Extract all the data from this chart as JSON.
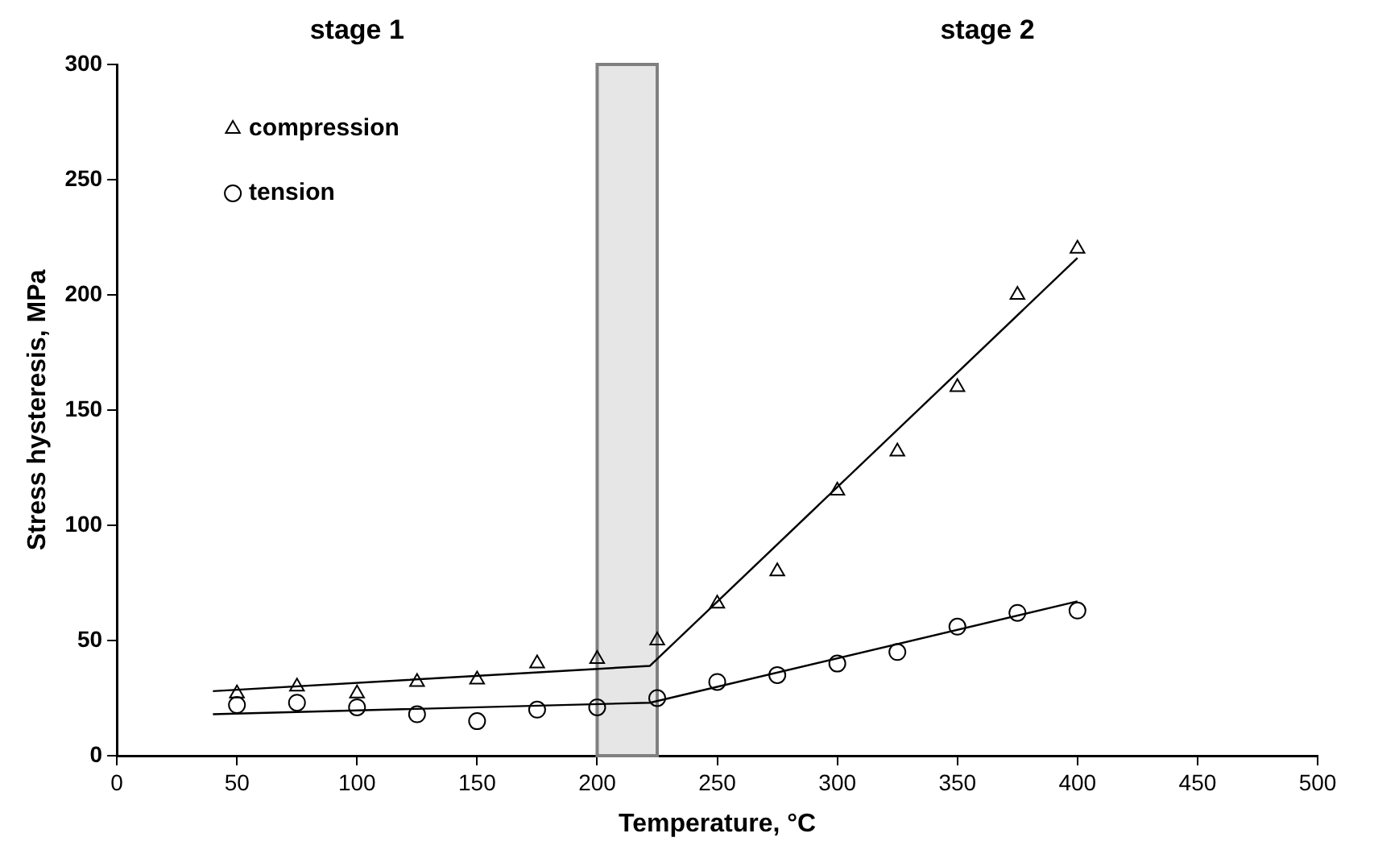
{
  "chart_data": {
    "type": "scatter",
    "xlabel": "Temperature, °C",
    "ylabel": "Stress hysteresis, MPa",
    "xlim": [
      0,
      500
    ],
    "ylim": [
      0,
      300
    ],
    "xticks": [
      0,
      50,
      100,
      150,
      200,
      250,
      300,
      350,
      400,
      450,
      500
    ],
    "yticks": [
      0,
      50,
      100,
      150,
      200,
      250,
      300
    ],
    "grid": false,
    "legend": "top left",
    "annotations": [
      "stage 1",
      "stage 2"
    ],
    "bands": [
      {
        "axis": "x",
        "from": 200,
        "to": 225,
        "color": "#e6e6e6"
      }
    ],
    "series": [
      {
        "name": "compression",
        "color": "#000000",
        "marker": "triangle",
        "x": [
          50,
          75,
          100,
          125,
          150,
          175,
          200,
          225,
          250,
          275,
          300,
          325,
          350,
          375,
          400
        ],
        "values": [
          27,
          30,
          27,
          32,
          33,
          40,
          42,
          50,
          66,
          80,
          115,
          132,
          160,
          200,
          220
        ]
      },
      {
        "name": "tension",
        "color": "#000000",
        "marker": "circle",
        "x": [
          50,
          75,
          100,
          125,
          150,
          175,
          200,
          225,
          250,
          275,
          300,
          325,
          350,
          375,
          400
        ],
        "values": [
          22,
          23,
          21,
          18,
          15,
          20,
          21,
          25,
          32,
          35,
          40,
          45,
          56,
          62,
          63
        ]
      },
      {
        "type": "line",
        "color": "#000000",
        "x": [
          40,
          222,
          400
        ],
        "values": [
          28,
          39,
          216
        ]
      },
      {
        "type": "line",
        "color": "#000000",
        "x": [
          40,
          222,
          400
        ],
        "values": [
          18,
          23,
          67
        ]
      }
    ]
  }
}
